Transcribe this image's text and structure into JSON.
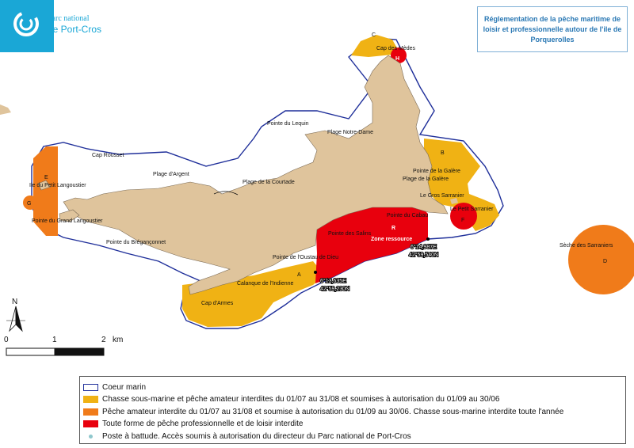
{
  "logo": {
    "line1": "Parc national",
    "line2": "de Port-Cros"
  },
  "title": "Réglementation de la pêche maritime de loisir et professionnelle autour de l'ile de Porquerolles",
  "north": "N",
  "scale": {
    "labels": [
      "0",
      "1",
      "2",
      "km"
    ]
  },
  "places": {
    "cap_des_medes": "Cap des Mèdes",
    "pointe_lequin": "Pointe du Lequin",
    "plage_notre_dame": "Plage Notre-Dame",
    "cap_rousset": "Cap Rousset",
    "plage_argent": "Plage d'Argent",
    "plage_courtade": "Plage de la Courtade",
    "ile_petit_langoustier": "Ile du Petit Langoustier",
    "pointe_grand_langoustier": "Pointe du Grand Langoustier",
    "pointe_breganconnet": "Pointe du Brégançonnet",
    "pointe_galere_1": "Pointe de la Galère",
    "plage_galere": "Plage de la Galère",
    "gros_sarranier": "Le Gros Sarranier",
    "petit_sarranier": "Le Petit Sarranier",
    "pointe_cabau": "Pointe du Cabau",
    "pointe_salins": "Pointe des Salins",
    "zone_ressource": "Zone ressource",
    "pointe_oustau": "Pointe de l'Oustau de Dieu",
    "calanque_indienne": "Calanque de l'Indienne",
    "cap_arme": "Cap d'Armes",
    "seche_sarraniers": "Sèche des Sarraniers"
  },
  "zones": {
    "A": "A",
    "B": "B",
    "C": "C",
    "D": "D",
    "E": "E",
    "F": "F",
    "G": "G",
    "H": "H",
    "R": "R"
  },
  "coords": {
    "p1_lon": "6°14,987E",
    "p1_lat": "42°59,540N",
    "p2_lon": "6°13,635E",
    "p2_lat": "42°59,230N"
  },
  "legend": [
    {
      "label": "Coeur marin",
      "swatch": "outline",
      "color": "#1f2f9a"
    },
    {
      "label": "Chasse sous-marine et pêche amateur interdites du 01/07 au 31/08 et soumises à autorisation du 01/09 au 30/06",
      "swatch": "fill",
      "color": "#f0b214"
    },
    {
      "label": "Pêche amateur interdite du 01/07 au 31/08 et soumise à autorisation du 01/09 au 30/06. Chasse sous-marine interdite toute l'année",
      "swatch": "fill",
      "color": "#f07b1a"
    },
    {
      "label": "Toute forme de pêche professionnelle et de loisir interdite",
      "swatch": "fill",
      "color": "#e8000d"
    },
    {
      "label": "Poste à battude. Accès soumis à autorisation du directeur du Parc national de Port-Cros",
      "swatch": "dot",
      "color": "#8fc7cc"
    }
  ],
  "colors": {
    "land": "#dfc49c",
    "coeur_marin": "#1f2f9a",
    "yellow_zone": "#f0b214",
    "orange_zone": "#f07b1a",
    "red_zone": "#e8000d",
    "logo_blue": "#1aa7d6",
    "title_blue": "#2a78b4"
  }
}
